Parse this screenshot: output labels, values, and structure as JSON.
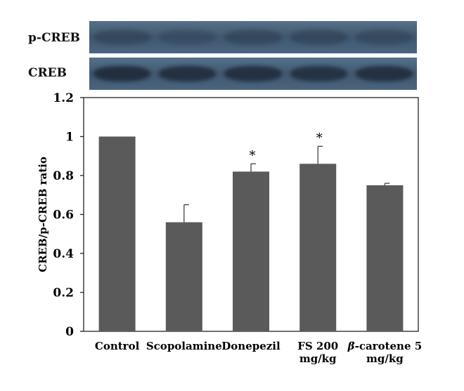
{
  "blots": {
    "rows": [
      {
        "label": "p-CREB",
        "band_intensity": [
          0.35,
          0.25,
          0.35,
          0.35,
          0.3
        ]
      },
      {
        "label": "CREB",
        "band_intensity": [
          0.9,
          0.85,
          0.85,
          0.8,
          0.85
        ]
      }
    ],
    "strip_color": "#4a6580",
    "band_color": "#1e2a3a"
  },
  "chart_data": {
    "type": "bar",
    "categories": [
      "Control",
      "Scopolamine",
      "Donepezil",
      "FS 200\nmg/kg",
      "β-carotene 5\nmg/kg"
    ],
    "values": [
      1.0,
      0.56,
      0.82,
      0.86,
      0.75
    ],
    "errors": [
      0,
      0.09,
      0.04,
      0.09,
      0.01
    ],
    "significance": [
      "",
      "",
      "*",
      "*",
      ""
    ],
    "ylabel": "CREB/p-CREB ratio",
    "xlabel": "",
    "ylim": [
      0,
      1.2
    ],
    "yticks": [
      "0",
      "0.2",
      "0.4",
      "0.6",
      "0.8",
      "1",
      "1.2"
    ],
    "bar_color": "#5a5a5a",
    "grid": false
  }
}
